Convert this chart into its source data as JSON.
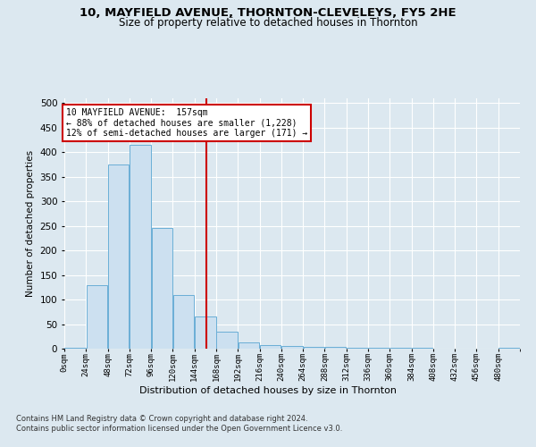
{
  "title_line1": "10, MAYFIELD AVENUE, THORNTON-CLEVELEYS, FY5 2HE",
  "title_line2": "Size of property relative to detached houses in Thornton",
  "xlabel": "Distribution of detached houses by size in Thornton",
  "ylabel": "Number of detached properties",
  "property_size": 157,
  "bin_width": 24,
  "bin_starts": [
    0,
    24,
    48,
    72,
    96,
    120,
    144,
    168,
    192,
    216,
    240,
    264,
    288,
    312,
    336,
    360,
    384,
    408,
    432,
    456,
    480
  ],
  "counts": [
    2,
    130,
    375,
    415,
    245,
    110,
    65,
    35,
    13,
    7,
    5,
    4,
    3,
    2,
    2,
    1,
    1,
    0,
    0,
    0,
    2
  ],
  "bar_color": "#cce0f0",
  "bar_edge_color": "#6aaed6",
  "vline_color": "#cc0000",
  "annotation_box_color": "#cc0000",
  "annotation_text": "10 MAYFIELD AVENUE:  157sqm\n← 88% of detached houses are smaller (1,228)\n12% of semi-detached houses are larger (171) →",
  "footer_line1": "Contains HM Land Registry data © Crown copyright and database right 2024.",
  "footer_line2": "Contains public sector information licensed under the Open Government Licence v3.0.",
  "bg_color": "#dce8f0",
  "plot_bg_color": "#dce8f0",
  "grid_color": "#ffffff",
  "tick_labels": [
    "0sqm",
    "24sqm",
    "48sqm",
    "72sqm",
    "96sqm",
    "120sqm",
    "144sqm",
    "168sqm",
    "192sqm",
    "216sqm",
    "240sqm",
    "264sqm",
    "288sqm",
    "312sqm",
    "336sqm",
    "360sqm",
    "384sqm",
    "408sqm",
    "432sqm",
    "456sqm",
    "480sqm"
  ]
}
